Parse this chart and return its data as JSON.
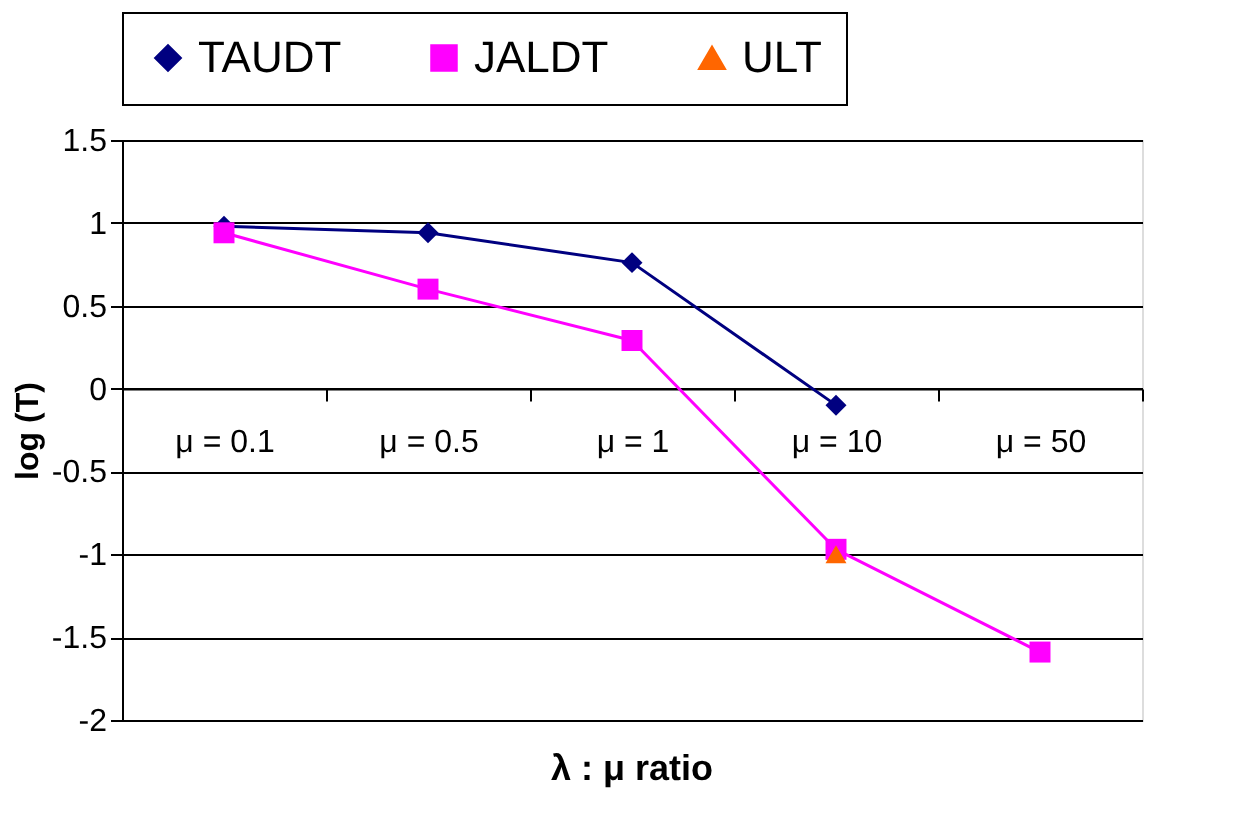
{
  "chart_data": {
    "type": "line",
    "xlabel": "λ : μ ratio",
    "ylabel": "log (T)",
    "categories": [
      "μ = 0.1",
      "μ = 0.5",
      "μ = 1",
      "μ = 10",
      "μ = 50"
    ],
    "series": [
      {
        "name": "TAUDT",
        "color": "#000080",
        "marker": "diamond",
        "values": [
          0.98,
          0.94,
          0.76,
          -0.1,
          null
        ]
      },
      {
        "name": "JALDT",
        "color": "#ff00ff",
        "marker": "square",
        "values": [
          0.94,
          0.6,
          0.29,
          -0.97,
          -1.59
        ]
      },
      {
        "name": "ULT",
        "color": "#ff6600",
        "marker": "triangle",
        "values": [
          null,
          null,
          null,
          -1.0,
          null
        ]
      }
    ],
    "ylim": [
      -2,
      1.5
    ],
    "yticks": [
      -2,
      -1.5,
      -1,
      -0.5,
      0,
      0.5,
      1,
      1.5
    ],
    "grid": "y",
    "legend": "top",
    "line_style": "solid"
  }
}
